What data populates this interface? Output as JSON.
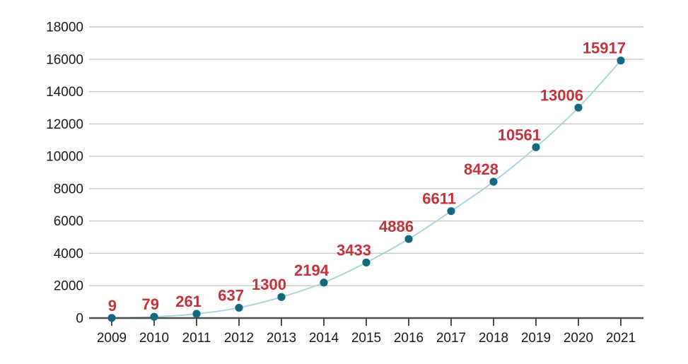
{
  "chart_data": {
    "type": "line",
    "title": "",
    "xlabel": "",
    "ylabel": "",
    "categories": [
      "2009",
      "2010",
      "2011",
      "2012",
      "2013",
      "2014",
      "2015",
      "2016",
      "2017",
      "2018",
      "2019",
      "2020",
      "2021"
    ],
    "values": [
      9,
      79,
      261,
      637,
      1300,
      2194,
      3433,
      4886,
      6611,
      8428,
      10561,
      13006,
      15917
    ],
    "ylim": [
      0,
      18000
    ],
    "yticks": [
      0,
      2000,
      4000,
      6000,
      8000,
      10000,
      12000,
      14000,
      16000,
      18000
    ],
    "grid": true,
    "legend_position": "none",
    "marker": "circle",
    "point_labels_visible": true
  },
  "style": {
    "background_color": "#ffffff",
    "line_color": "#a9d5dc",
    "marker_color": "#15697f",
    "point_label_color": "#c3333a",
    "grid_color": "#c6c6c6",
    "axis_color": "#4d4d4d",
    "tick_label_color": "#1a1a1a"
  }
}
